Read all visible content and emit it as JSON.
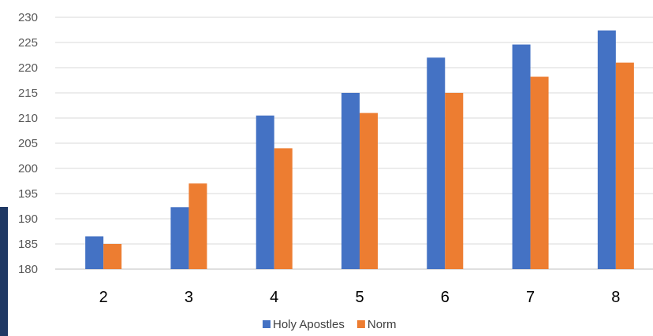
{
  "chart_data": {
    "type": "bar",
    "title": "",
    "xlabel": "",
    "ylabel": "",
    "categories": [
      "2",
      "3",
      "4",
      "5",
      "6",
      "7",
      "8"
    ],
    "series": [
      {
        "name": "Holy Apostles",
        "color": "#4472c4",
        "values": [
          186.5,
          192.3,
          210.5,
          215,
          222,
          224.6,
          227.4
        ]
      },
      {
        "name": "Norm",
        "color": "#ed7d31",
        "values": [
          185,
          197,
          204,
          211,
          215,
          218.2,
          221
        ]
      }
    ],
    "ylim": [
      180,
      230
    ],
    "yticks": [
      "180",
      "185",
      "190",
      "195",
      "200",
      "205",
      "210",
      "215",
      "220",
      "225",
      "230"
    ],
    "grid": true,
    "legend": "bottom"
  }
}
